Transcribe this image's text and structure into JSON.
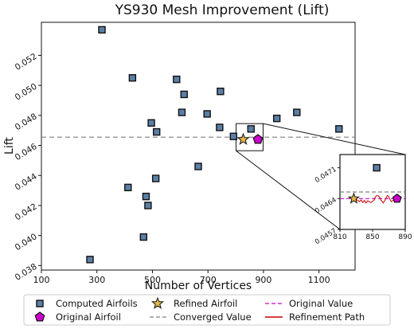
{
  "chart_data": {
    "type": "scatter",
    "title": "YS930 Mesh Improvement (Lift)",
    "xlabel": "Number of Vertices",
    "ylabel": "Lift",
    "xlim": [
      100,
      1230
    ],
    "ylim": [
      0.0377,
      0.0542
    ],
    "xticks": [
      100,
      300,
      500,
      700,
      900,
      1100
    ],
    "yticks": [
      0.038,
      0.04,
      0.042,
      0.044,
      0.046,
      0.048,
      0.05,
      0.052
    ],
    "ytick_labels": [
      "0.038",
      "0.040",
      "0.042",
      "0.044",
      "0.046",
      "0.048",
      "0.050",
      "0.052"
    ],
    "grid": false,
    "colors": {
      "computed": "#5b7fa6",
      "original": "#cc00cc",
      "refined": "#e8b84a",
      "converged": "#808080",
      "refinement_path": "#cc0000"
    },
    "series": [
      {
        "name": "Computed Airfoils",
        "marker": "square",
        "points": [
          [
            275,
            0.0384
          ],
          [
            318,
            0.0537
          ],
          [
            412,
            0.0432
          ],
          [
            428,
            0.0505
          ],
          [
            468,
            0.0399
          ],
          [
            477,
            0.0426
          ],
          [
            484,
            0.042
          ],
          [
            496,
            0.0475
          ],
          [
            512,
            0.0438
          ],
          [
            515,
            0.0469
          ],
          [
            587,
            0.0504
          ],
          [
            606,
            0.0482
          ],
          [
            614,
            0.0494
          ],
          [
            665,
            0.0446
          ],
          [
            697,
            0.0481
          ],
          [
            742,
            0.0472
          ],
          [
            745,
            0.0496
          ],
          [
            792,
            0.0466
          ],
          [
            855,
            0.0471
          ],
          [
            948,
            0.0478
          ],
          [
            1020,
            0.0482
          ],
          [
            1172,
            0.0471
          ]
        ]
      },
      {
        "name": "Original Airfoil",
        "marker": "pentagon",
        "points": [
          [
            880,
            0.0464
          ]
        ]
      },
      {
        "name": "Refined Airfoil",
        "marker": "star",
        "points": [
          [
            827,
            0.0464
          ]
        ]
      }
    ],
    "converged_value": 0.04655,
    "original_value": 0.0464,
    "inset": {
      "xlim": [
        810,
        890
      ],
      "ylim": [
        0.0457,
        0.0474
      ],
      "xticks": [
        810,
        850,
        890
      ],
      "yticks": [
        0.0457,
        0.0464,
        0.0471
      ],
      "ytick_labels": [
        "0.0457",
        "0.0464",
        "0.0471"
      ],
      "computed_point": [
        855,
        0.0471
      ],
      "refinement_path": [
        [
          828,
          0.0464
        ],
        [
          832,
          0.04636
        ],
        [
          834,
          0.04633
        ],
        [
          836,
          0.04637
        ],
        [
          838,
          0.04631
        ],
        [
          840,
          0.04636
        ],
        [
          842,
          0.0463
        ],
        [
          844,
          0.04635
        ],
        [
          846,
          0.04633
        ],
        [
          848,
          0.04631
        ],
        [
          850,
          0.04634
        ],
        [
          852,
          0.04637
        ],
        [
          853,
          0.04643
        ],
        [
          855,
          0.04647
        ],
        [
          857,
          0.04646
        ],
        [
          859,
          0.04642
        ],
        [
          860,
          0.04637
        ],
        [
          862,
          0.04633
        ],
        [
          863,
          0.0463
        ],
        [
          865,
          0.04636
        ],
        [
          867,
          0.04643
        ],
        [
          868,
          0.04647
        ],
        [
          870,
          0.04644
        ],
        [
          871,
          0.04639
        ],
        [
          873,
          0.04633
        ],
        [
          875,
          0.04636
        ],
        [
          877,
          0.04638
        ],
        [
          880,
          0.0464
        ]
      ]
    },
    "legend": {
      "placement": "bottom",
      "entries": [
        "Computed Airfoils",
        "Original Airfoil",
        "Refined Airfoil",
        "Converged Value",
        "Original Value",
        "Refinement Path"
      ]
    }
  }
}
